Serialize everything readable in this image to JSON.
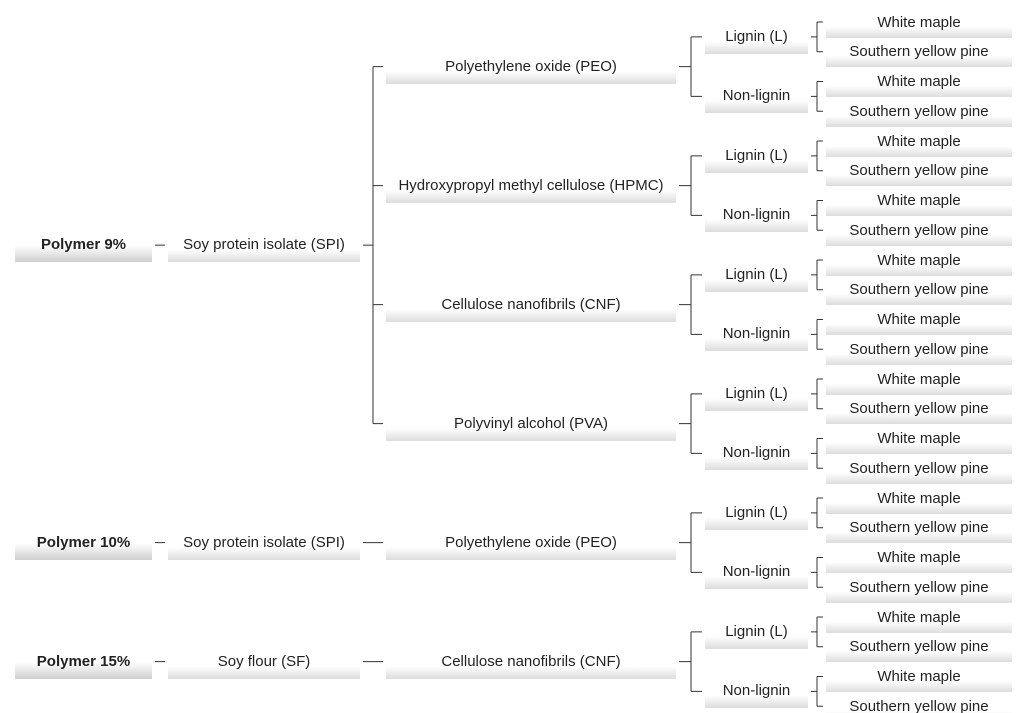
{
  "roots": [
    {
      "label": "Polymer 9%",
      "children": [
        {
          "label": "Soy protein isolate (SPI)",
          "children": [
            {
              "label": "Polyethylene oxide (PEO)",
              "children": [
                {
                  "label": "Lignin (L)",
                  "children": [
                    {
                      "label": "White maple"
                    },
                    {
                      "label": "Southern yellow pine"
                    }
                  ]
                },
                {
                  "label": "Non-lignin",
                  "children": [
                    {
                      "label": "White maple"
                    },
                    {
                      "label": "Southern yellow pine"
                    }
                  ]
                }
              ]
            },
            {
              "label": "Hydroxypropyl methyl cellulose (HPMC)",
              "children": [
                {
                  "label": "Lignin (L)",
                  "children": [
                    {
                      "label": "White maple"
                    },
                    {
                      "label": "Southern yellow pine"
                    }
                  ]
                },
                {
                  "label": "Non-lignin",
                  "children": [
                    {
                      "label": "White maple"
                    },
                    {
                      "label": "Southern yellow pine"
                    }
                  ]
                }
              ]
            },
            {
              "label": "Cellulose nanofibrils (CNF)",
              "children": [
                {
                  "label": "Lignin (L)",
                  "children": [
                    {
                      "label": "White maple"
                    },
                    {
                      "label": "Southern yellow pine"
                    }
                  ]
                },
                {
                  "label": "Non-lignin",
                  "children": [
                    {
                      "label": "White maple"
                    },
                    {
                      "label": "Southern yellow pine"
                    }
                  ]
                }
              ]
            },
            {
              "label": "Polyvinyl alcohol (PVA)",
              "children": [
                {
                  "label": "Lignin (L)",
                  "children": [
                    {
                      "label": "White maple"
                    },
                    {
                      "label": "Southern yellow pine"
                    }
                  ]
                },
                {
                  "label": "Non-lignin",
                  "children": [
                    {
                      "label": "White maple"
                    },
                    {
                      "label": "Southern yellow pine"
                    }
                  ]
                }
              ]
            }
          ]
        }
      ]
    },
    {
      "label": "Polymer 10%",
      "children": [
        {
          "label": "Soy protein isolate (SPI)",
          "children": [
            {
              "label": "Polyethylene oxide (PEO)",
              "children": [
                {
                  "label": "Lignin (L)",
                  "children": [
                    {
                      "label": "White maple"
                    },
                    {
                      "label": "Southern yellow pine"
                    }
                  ]
                },
                {
                  "label": "Non-lignin",
                  "children": [
                    {
                      "label": "White maple"
                    },
                    {
                      "label": "Southern yellow pine"
                    }
                  ]
                }
              ]
            }
          ]
        }
      ]
    },
    {
      "label": "Polymer 15%",
      "children": [
        {
          "label": "Soy flour (SF)",
          "children": [
            {
              "label": "Cellulose nanofibrils (CNF)",
              "children": [
                {
                  "label": "Lignin (L)",
                  "children": [
                    {
                      "label": "White maple"
                    },
                    {
                      "label": "Southern yellow pine"
                    }
                  ]
                },
                {
                  "label": "Non-lignin",
                  "children": [
                    {
                      "label": "White maple"
                    },
                    {
                      "label": "Southern yellow pine"
                    }
                  ]
                }
              ]
            }
          ]
        }
      ]
    }
  ]
}
